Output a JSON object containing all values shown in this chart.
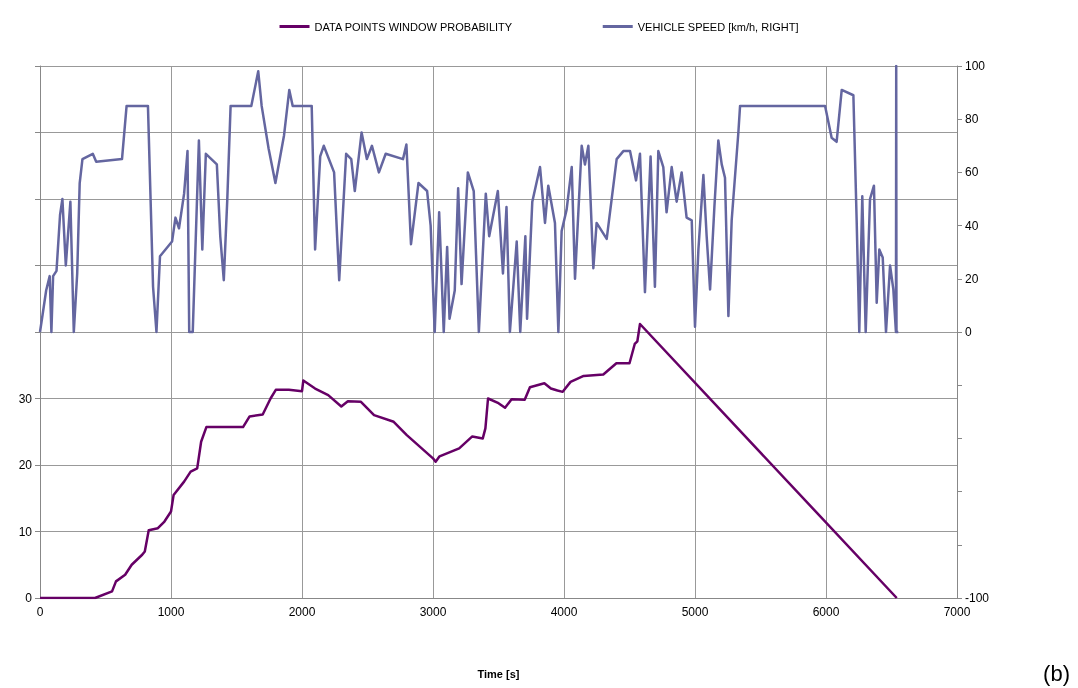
{
  "chart_data": {
    "type": "line",
    "xlabel": "Time [s]",
    "xlim": [
      0,
      7000
    ],
    "xticks": [
      0,
      1000,
      2000,
      3000,
      4000,
      5000,
      6000,
      7000
    ],
    "ylim": [
      0,
      80
    ],
    "yticks": [
      0,
      10,
      20,
      30,
      {
        "value": 40,
        "label": null
      },
      {
        "value": 50,
        "label": null
      },
      {
        "value": 60,
        "label": null
      },
      {
        "value": 70,
        "label": null
      },
      {
        "value": 80,
        "label": null
      }
    ],
    "y2lim": [
      -100,
      100
    ],
    "y2ticks": [
      -100,
      {
        "value": -80,
        "label": null
      },
      {
        "value": -60,
        "label": null
      },
      {
        "value": -40,
        "label": null
      },
      {
        "value": -20,
        "label": null
      },
      0,
      20,
      40,
      60,
      80,
      100
    ],
    "grid": true,
    "legend": "top",
    "annotations": [
      "(b)"
    ],
    "series": [
      {
        "name": "DATA POINTS WINDOW PROBABILITY",
        "color": "#660066",
        "x": [
          0,
          420,
          550,
          580,
          650,
          700,
          780,
          800,
          830,
          900,
          950,
          1000,
          1020,
          1100,
          1150,
          1200,
          1230,
          1270,
          1550,
          1600,
          1700,
          1760,
          1800,
          1900,
          2000,
          2010,
          2100,
          2200,
          2300,
          2350,
          2450,
          2550,
          2700,
          2800,
          3000,
          3020,
          3050,
          3200,
          3300,
          3380,
          3400,
          3420,
          3500,
          3550,
          3600,
          3700,
          3740,
          3850,
          3900,
          3950,
          3990,
          4050,
          4150,
          4300,
          4400,
          4500,
          4540,
          4560,
          4580,
          6540
        ],
        "values": [
          0,
          0,
          1,
          2.5,
          3.5,
          5,
          6.5,
          7,
          10.2,
          10.5,
          11.5,
          13,
          15.5,
          17.5,
          19,
          19.5,
          23.5,
          25.7,
          25.7,
          27.3,
          27.6,
          30,
          31.3,
          31.3,
          31.1,
          32.7,
          31.5,
          30.5,
          28.8,
          29.6,
          29.5,
          27.5,
          26.5,
          24.5,
          21,
          20.5,
          21.3,
          22.5,
          24.3,
          24,
          25.5,
          30,
          29.3,
          28.6,
          29.9,
          29.8,
          31.7,
          32.3,
          31.5,
          31.2,
          31,
          32.5,
          33.4,
          33.6,
          35.3,
          35.3,
          38.2,
          38.6,
          41.2,
          0
        ]
      },
      {
        "name": "VEHICLE SPEED [km/h, RIGHT]",
        "color": "#6466a0",
        "axis": "y2",
        "x": [
          0,
          20,
          47,
          74,
          87,
          100,
          126,
          153,
          171,
          197,
          232,
          258,
          284,
          303,
          324,
          403,
          429,
          626,
          661,
          824,
          863,
          889,
          916,
          1008,
          1034,
          1061,
          1100,
          1126,
          1139,
          1166,
          1213,
          1239,
          1266,
          1350,
          1376,
          1403,
          1429,
          1455,
          1613,
          1666,
          1692,
          1745,
          1797,
          1863,
          1903,
          1929,
          2074,
          2100,
          2139,
          2166,
          2245,
          2284,
          2337,
          2376,
          2403,
          2455,
          2495,
          2534,
          2587,
          2639,
          2771,
          2797,
          2832,
          2889,
          2955,
          2982,
          3013,
          3047,
          3082,
          3108,
          3126,
          3166,
          3192,
          3218,
          3266,
          3311,
          3350,
          3403,
          3429,
          3495,
          3534,
          3561,
          3587,
          3639,
          3666,
          3705,
          3718,
          3758,
          3817,
          3855,
          3880,
          3931,
          3957,
          3982,
          4020,
          4059,
          4084,
          4135,
          4160,
          4186,
          4224,
          4249,
          4326,
          4402,
          4453,
          4504,
          4550,
          4580,
          4618,
          4661,
          4694,
          4720,
          4758,
          4783,
          4822,
          4860,
          4898,
          4936,
          4975,
          5000,
          5026,
          5064,
          5089,
          5115,
          5148,
          5178,
          5204,
          5229,
          5255,
          5280,
          5331,
          5344,
          5993,
          6043,
          6081,
          6120,
          6209,
          6234,
          6254,
          6277,
          6303,
          6336,
          6366,
          6387,
          6407,
          6433,
          6458,
          6489,
          6514,
          6534,
          6536,
          6538,
          6552
        ],
        "values": [
          0,
          6.6,
          15.6,
          21,
          0,
          21,
          23,
          44,
          50,
          25,
          49,
          0,
          22,
          56,
          65,
          67,
          64,
          65,
          85,
          85,
          17,
          0,
          28.5,
          34,
          43,
          39,
          52,
          68,
          0,
          0,
          72,
          31,
          67,
          63,
          36,
          19.5,
          49,
          85,
          85,
          98,
          85,
          69,
          56,
          74,
          91,
          85,
          85,
          31,
          66,
          70,
          60,
          19.5,
          67,
          65,
          53,
          75,
          65,
          70,
          60,
          67,
          65,
          70.5,
          33,
          56,
          53,
          40,
          0,
          45,
          0,
          32,
          5,
          15.6,
          54,
          18,
          60,
          53,
          0,
          52,
          36,
          53,
          22,
          47,
          0,
          34,
          0,
          36,
          5,
          49,
          62,
          41,
          55,
          41,
          0,
          38,
          46,
          62,
          20,
          70,
          63,
          70,
          24,
          41,
          35,
          65,
          68,
          68,
          57,
          67,
          15,
          66,
          17,
          68,
          62,
          45,
          62,
          49,
          60,
          43,
          42,
          2,
          31,
          59,
          36,
          16,
          47,
          72,
          63,
          58,
          6,
          42,
          75,
          85,
          85,
          73,
          71.5,
          91,
          89,
          42,
          0,
          51,
          0,
          50,
          55,
          11,
          31,
          28,
          0,
          25,
          16,
          0,
          100,
          0,
          0
        ]
      }
    ]
  }
}
